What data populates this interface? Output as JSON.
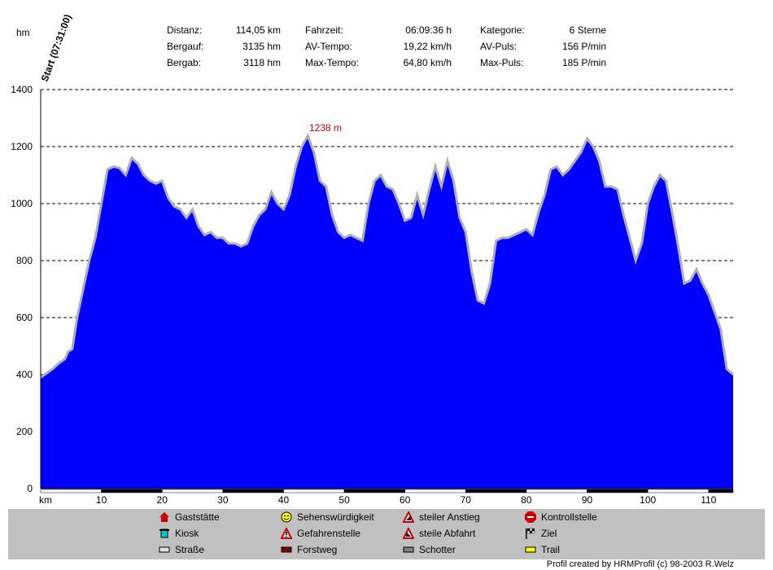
{
  "chart_data": {
    "type": "area",
    "title": "",
    "xlabel": "km",
    "ylabel": "hm",
    "xlim": [
      0,
      114.05
    ],
    "ylim": [
      0,
      1400
    ],
    "x_ticks": [
      10,
      20,
      30,
      40,
      50,
      60,
      70,
      80,
      90,
      100,
      110
    ],
    "y_ticks": [
      0,
      200,
      400,
      600,
      800,
      1000,
      1200,
      1400
    ],
    "grid": true,
    "fill_color": "#0000ff",
    "outline_color": "#b0b0b0",
    "start_label": "Start (07:31:00)",
    "peak_label": "1238 m",
    "peak_label_color": "#cc0000",
    "series": [
      {
        "x": [
          0,
          2,
          3,
          4,
          4.5,
          5.2,
          6,
          7,
          8,
          9,
          10,
          11,
          12,
          13,
          14,
          15,
          16,
          17,
          18,
          19,
          20,
          21,
          22,
          23,
          24,
          25,
          26,
          27,
          28,
          29,
          30,
          31,
          32,
          33,
          34,
          35,
          36,
          37,
          38,
          39,
          40,
          41,
          42,
          43,
          44,
          45,
          46,
          47,
          48,
          49,
          50,
          51,
          52,
          53,
          54,
          55,
          56,
          57,
          58,
          59,
          60,
          61,
          62,
          63,
          64,
          65,
          66,
          67,
          68,
          69,
          70,
          71,
          72,
          73,
          74,
          75,
          76,
          77,
          78,
          79,
          80,
          81,
          82,
          83,
          84,
          85,
          86,
          87,
          88,
          89,
          90,
          91,
          92,
          93,
          94,
          95,
          96,
          97,
          98,
          99,
          100,
          101,
          102,
          103,
          104,
          105,
          106,
          107,
          108,
          109,
          110,
          111,
          112,
          113,
          114.05
        ],
        "y": [
          390,
          420,
          440,
          455,
          480,
          490,
          600,
          700,
          800,
          880,
          1000,
          1120,
          1130,
          1125,
          1100,
          1160,
          1140,
          1100,
          1080,
          1070,
          1080,
          1020,
          990,
          980,
          950,
          980,
          920,
          890,
          900,
          880,
          880,
          860,
          860,
          850,
          860,
          920,
          960,
          980,
          1040,
          1000,
          980,
          1030,
          1130,
          1200,
          1238,
          1180,
          1080,
          1060,
          960,
          900,
          880,
          890,
          880,
          870,
          1000,
          1080,
          1100,
          1060,
          1050,
          1000,
          940,
          950,
          1030,
          960,
          1050,
          1130,
          1060,
          1150,
          1080,
          950,
          900,
          760,
          660,
          650,
          720,
          870,
          880,
          880,
          890,
          900,
          910,
          890,
          970,
          1030,
          1120,
          1130,
          1100,
          1120,
          1150,
          1180,
          1228,
          1200,
          1150,
          1060,
          1060,
          1050,
          960,
          880,
          800,
          860,
          1000,
          1060,
          1100,
          1080,
          970,
          850,
          720,
          730,
          770,
          720,
          680,
          620,
          560,
          420,
          400
        ]
      }
    ]
  },
  "stats": [
    {
      "label": "Distanz:",
      "value": "114,05 km"
    },
    {
      "label": "Bergauf:",
      "value": "3135 hm"
    },
    {
      "label": "Bergab:",
      "value": "3118 hm"
    },
    {
      "label": "Fahrzeit:",
      "value": "06:09:36 h"
    },
    {
      "label": "AV-Tempo:",
      "value": "19,22 km/h"
    },
    {
      "label": "Max-Tempo:",
      "value": "64,80 km/h"
    },
    {
      "label": "Kategorie:",
      "value": "6 Sterne"
    },
    {
      "label": "AV-Puls:",
      "value": "156 P/min"
    },
    {
      "label": "Max-Puls:",
      "value": "185 P/min"
    }
  ],
  "legend": [
    {
      "icon": "restaurant-icon",
      "label": "Gaststätte",
      "color": "#cc0000"
    },
    {
      "icon": "smiley-icon",
      "label": "Sehenswürdigkeit",
      "color": "#ffff00"
    },
    {
      "icon": "steep-climb-icon",
      "label": "steiler Anstieg",
      "color": "#cc0000"
    },
    {
      "icon": "stop-sign-icon",
      "label": "Kontrollstelle",
      "color": "#cc0000"
    },
    {
      "icon": "kiosk-icon",
      "label": "Kiosk",
      "color": "#00cccc"
    },
    {
      "icon": "danger-icon",
      "label": "Gefahrenstelle",
      "color": "#cc0000"
    },
    {
      "icon": "steep-descent-icon",
      "label": "steile Abfahrt",
      "color": "#cc0000"
    },
    {
      "icon": "finish-flag-icon",
      "label": "Ziel",
      "color": "#000000"
    },
    {
      "icon": "road-swatch-icon",
      "label": "Straße",
      "color": "#e0e0e0"
    },
    {
      "icon": "forest-road-swatch-icon",
      "label": "Forstweg",
      "color": "#800000"
    },
    {
      "icon": "gravel-swatch-icon",
      "label": "Schotter",
      "color": "#808080"
    },
    {
      "icon": "trail-swatch-icon",
      "label": "Trail",
      "color": "#ffff00"
    }
  ],
  "credit": "Profil created by HRMProfil (c) 98-2003 R.Welz"
}
